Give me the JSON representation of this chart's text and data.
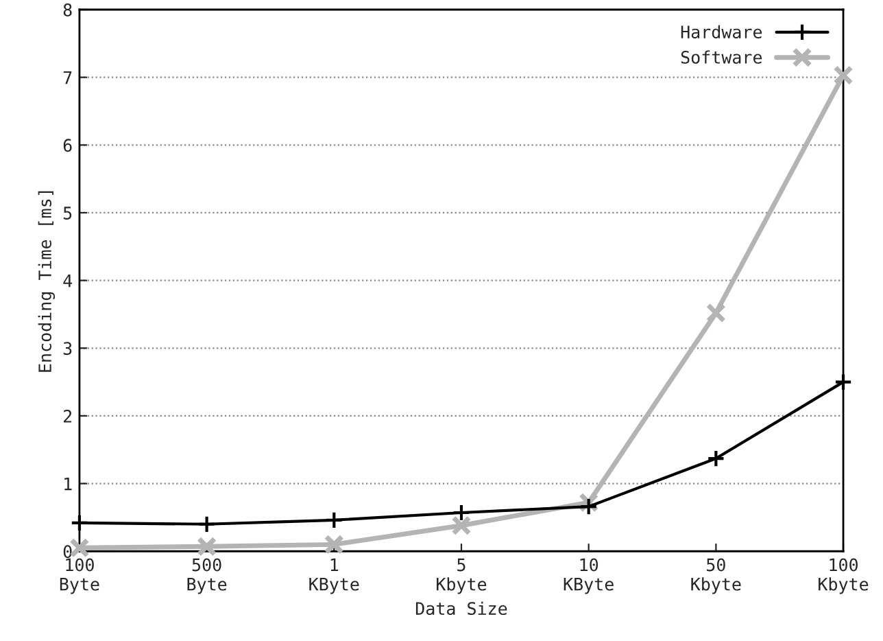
{
  "chart_data": {
    "type": "line",
    "xlabel": "Data Size",
    "ylabel": "Encoding Time [ms]",
    "categories": [
      "100\nByte",
      "500\nByte",
      "1\nKByte",
      "5\nKbyte",
      "10\nKByte",
      "50\nKbyte",
      "100\nKbyte"
    ],
    "series": [
      {
        "name": "Hardware",
        "color": "#000000",
        "values": [
          0.42,
          0.4,
          0.46,
          0.57,
          0.66,
          1.37,
          2.5
        ]
      },
      {
        "name": "Software",
        "color": "#b4b4b4",
        "values": [
          0.05,
          0.07,
          0.1,
          0.38,
          0.72,
          3.52,
          7.03
        ]
      }
    ],
    "ylim": [
      0,
      8
    ],
    "yticks": [
      0,
      1,
      2,
      3,
      4,
      5,
      6,
      7,
      8
    ],
    "grid": "y",
    "legend": "top right",
    "marker": "cross",
    "line_style": "solid"
  }
}
